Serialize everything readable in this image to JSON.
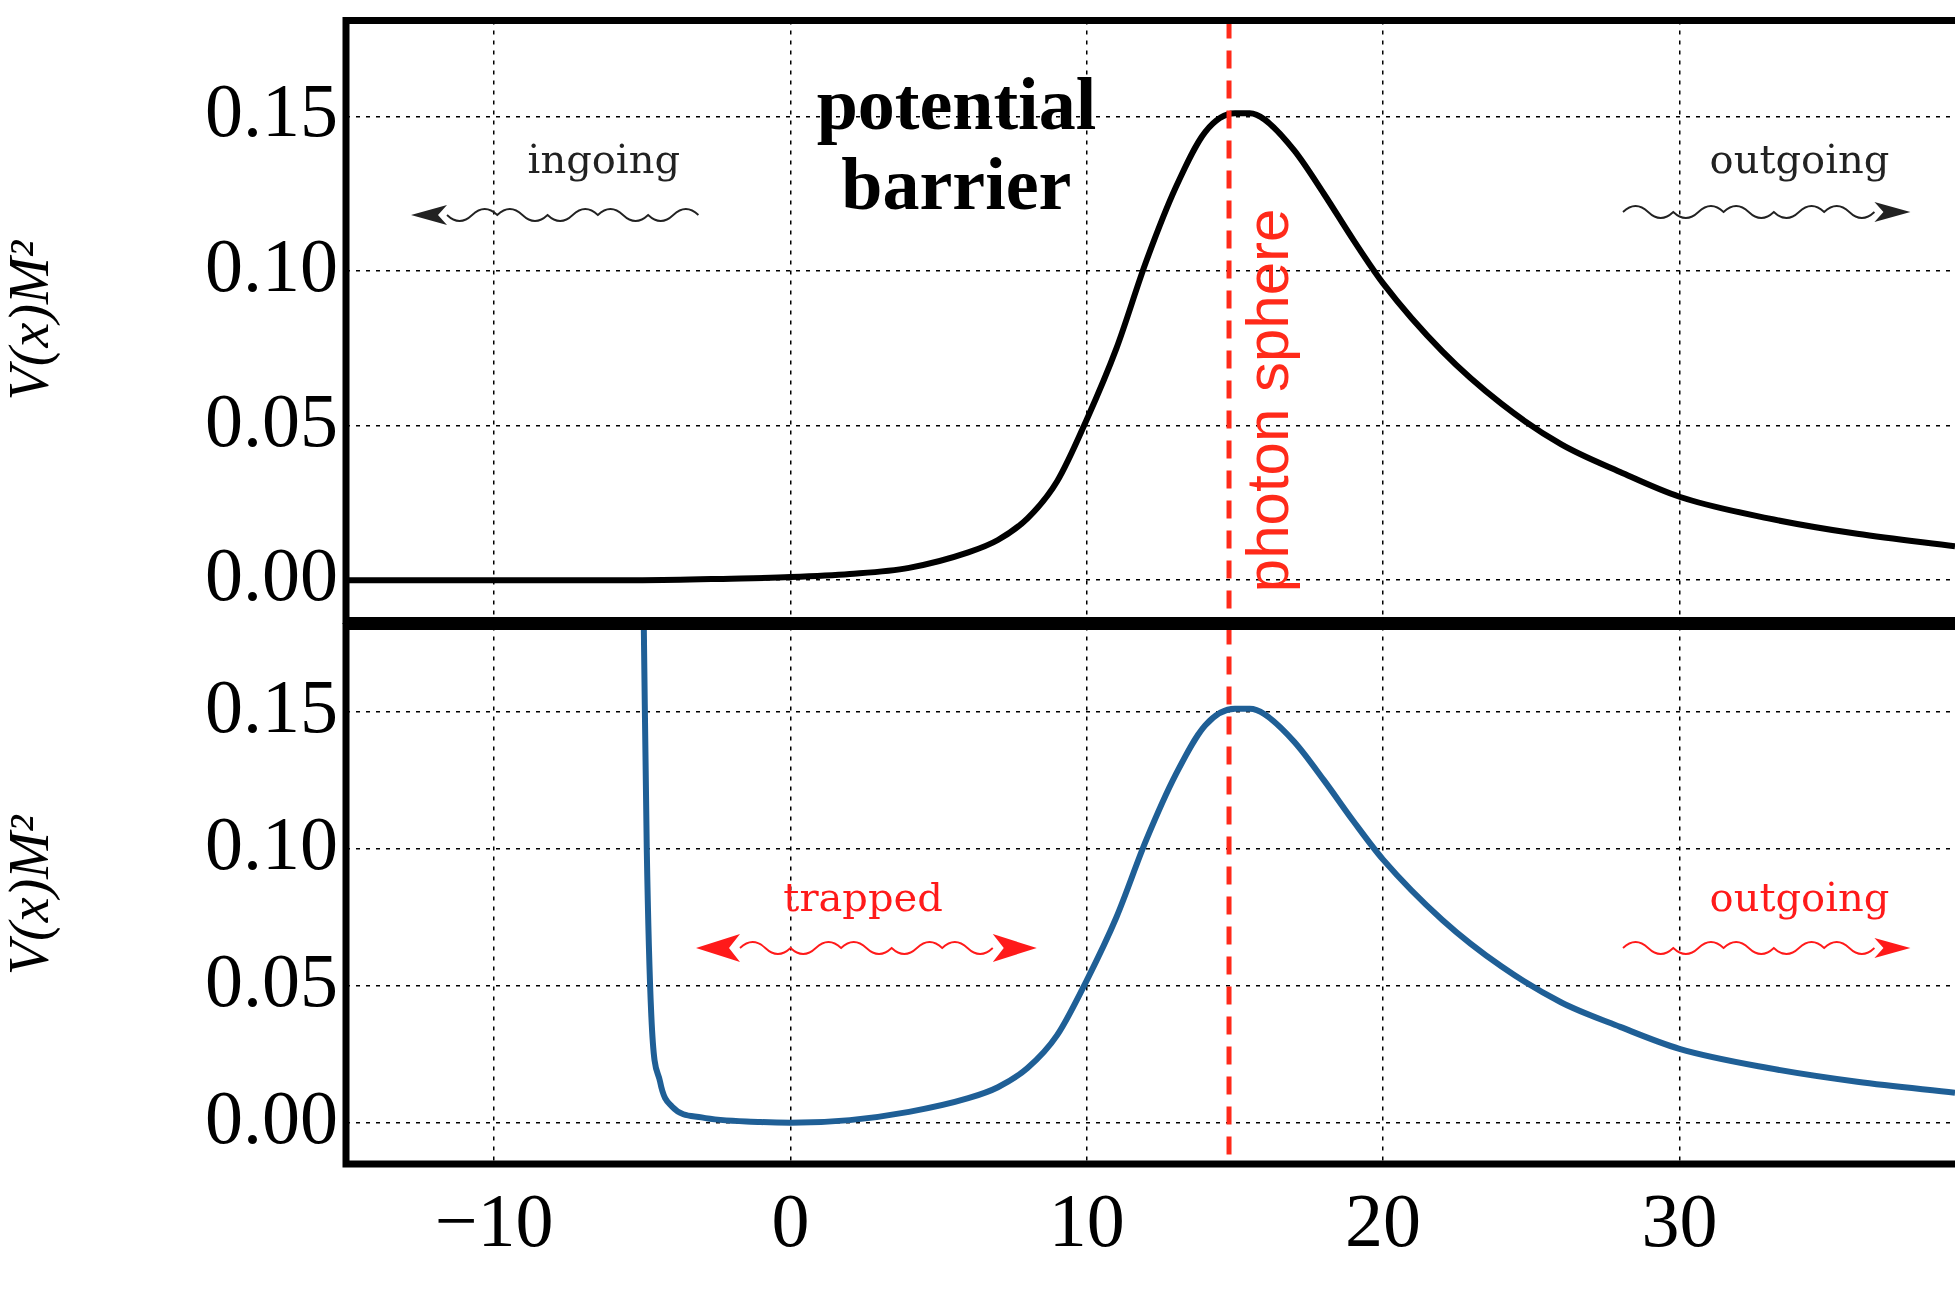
{
  "chart_data": [
    {
      "type": "line",
      "ylabel": "V(x)M²",
      "xlim": [
        -15,
        39.3
      ],
      "xticks": [
        -10,
        0,
        10,
        20,
        30
      ],
      "ylim": [
        -0.013,
        0.181
      ],
      "yticks": [
        {
          "value": 0,
          "label": "0.00"
        },
        {
          "value": 0.05,
          "label": "0.05"
        },
        {
          "value": 0.1,
          "label": "0.10"
        },
        {
          "value": 0.15,
          "label": "0.15"
        }
      ],
      "grid": true,
      "legend": false,
      "tick_labels": "y",
      "line_style": "solid",
      "marker": "none",
      "series": [
        {
          "color": "#000000",
          "x": [
            -15,
            -10,
            -5,
            -2,
            0,
            2,
            4,
            6,
            7,
            8,
            9,
            10,
            11,
            12,
            13,
            14,
            15,
            15.5,
            16,
            17,
            18,
            19,
            20,
            22,
            24,
            26,
            28,
            30,
            33,
            36,
            39.3
          ],
          "values": [
            0,
            0,
            0,
            0.0005,
            0.001,
            0.002,
            0.004,
            0.009,
            0.013,
            0.02,
            0.032,
            0.052,
            0.075,
            0.103,
            0.127,
            0.145,
            0.151,
            0.151,
            0.149,
            0.139,
            0.125,
            0.11,
            0.096,
            0.074,
            0.057,
            0.044,
            0.035,
            0.027,
            0.02,
            0.015,
            0.011
          ]
        }
      ],
      "ref_lines": [
        {
          "axis": "x",
          "value": 14.8,
          "label": "photon sphere",
          "color": "#ff2a1a",
          "line_style": "dashed"
        }
      ],
      "annotations": [
        "potential barrier",
        "ingoing",
        "outgoing"
      ]
    },
    {
      "type": "line",
      "ylabel": "V(x)M²",
      "xlim": [
        -15,
        39.3
      ],
      "xticks": [
        {
          "value": -10,
          "label": "−10"
        },
        0,
        10,
        20,
        30
      ],
      "ylim": [
        -0.015,
        0.181
      ],
      "yticks": [
        {
          "value": 0,
          "label": "0.00"
        },
        {
          "value": 0.05,
          "label": "0.05"
        },
        {
          "value": 0.1,
          "label": "0.10"
        },
        {
          "value": 0.15,
          "label": "0.15"
        }
      ],
      "grid": true,
      "legend": false,
      "line_style": "solid",
      "marker": "none",
      "series": [
        {
          "color": "#1f5f96",
          "x": [
            -4.95,
            -4.85,
            -4.7,
            -4.4,
            -4,
            -3,
            -1,
            0,
            2,
            4,
            6,
            7,
            8,
            9,
            10,
            11,
            12,
            13,
            14,
            15,
            15.5,
            16,
            17,
            18,
            19,
            20,
            22,
            24,
            26,
            28,
            30,
            33,
            36,
            39.3
          ],
          "values": [
            0.181,
            0.1,
            0.04,
            0.015,
            0.006,
            0.002,
            0.0003,
            0,
            0.001,
            0.004,
            0.009,
            0.013,
            0.02,
            0.032,
            0.052,
            0.075,
            0.103,
            0.127,
            0.145,
            0.151,
            0.151,
            0.149,
            0.139,
            0.125,
            0.11,
            0.096,
            0.074,
            0.057,
            0.044,
            0.035,
            0.027,
            0.02,
            0.015,
            0.011
          ]
        }
      ],
      "ref_lines": [
        {
          "axis": "x",
          "value": 14.8,
          "color": "#ff2a1a",
          "line_style": "dashed"
        }
      ],
      "annotations": [
        "trapped",
        "outgoing"
      ]
    }
  ]
}
